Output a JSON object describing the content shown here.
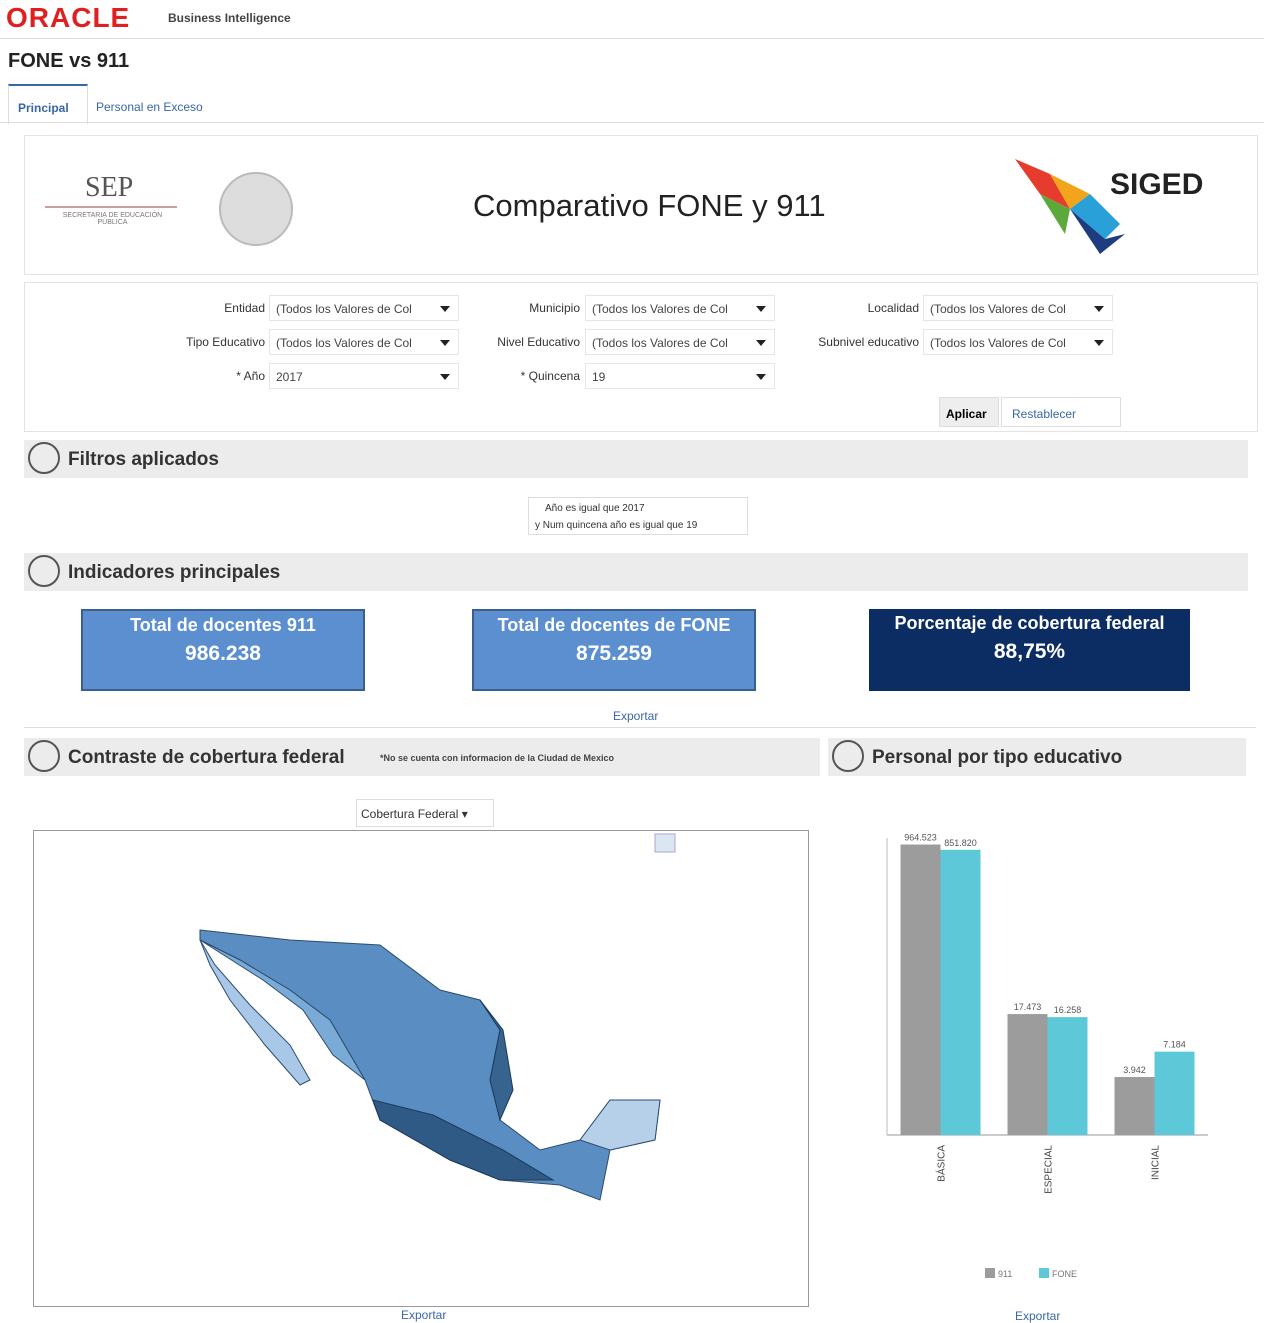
{
  "header": {
    "brand": "ORACLE",
    "product": "Business Intelligence"
  },
  "page_title": "FONE vs 911",
  "tabs": [
    "Principal",
    "Personal en Exceso"
  ],
  "banner": {
    "left_logo": "SEP",
    "left_logo_sub": "SECRETARIA DE EDUCACIÓN PÚBLICA",
    "title": "Comparativo FONE y 911",
    "right_logo": "SIGED"
  },
  "filters": [
    {
      "label": "Entidad",
      "value": "(Todos los Valores de Col"
    },
    {
      "label": "Municipio",
      "value": "(Todos los Valores de Col"
    },
    {
      "label": "Localidad",
      "value": "(Todos los Valores de Col"
    },
    {
      "label": "Tipo Educativo",
      "value": "(Todos los Valores de Col"
    },
    {
      "label": "Nivel Educativo",
      "value": "(Todos los Valores de Col"
    },
    {
      "label": "Subnivel educativo",
      "value": "(Todos los Valores de Col"
    },
    {
      "label": "* Año",
      "value": "2017"
    },
    {
      "label": "* Quincena",
      "value": "19"
    }
  ],
  "buttons": {
    "apply": "Aplicar",
    "reset": "Restablecer"
  },
  "applied": {
    "title": "Filtros aplicados",
    "lines": [
      "Año es igual que 2017",
      "y Num quincena año es igual que 19"
    ]
  },
  "kpis": {
    "title": "Indicadores principales",
    "export": "Exportar",
    "tiles": [
      {
        "label": "Total de docentes 911",
        "value": "986.238"
      },
      {
        "label": "Total de docentes de FONE",
        "value": "875.259"
      },
      {
        "label": "Porcentaje de cobertura federal",
        "value": "88,75%"
      }
    ]
  },
  "map": {
    "title": "Contraste de cobertura federal",
    "note": "*No se cuenta con informacion de la Ciudad de Mexico",
    "dropdown": "Cobertura Federal",
    "export": "Exportar"
  },
  "chart_panel": {
    "title": "Personal por tipo educativo",
    "export": "Exportar"
  },
  "chart_data": {
    "type": "bar",
    "categories": [
      "BÁSICA",
      "ESPECIAL",
      "INICIAL"
    ],
    "ylim": [
      1000,
      1000000
    ],
    "log_scale": true,
    "series": [
      {
        "name": "911",
        "color": "#9c9c9c",
        "values": [
          964523,
          17473,
          3942
        ],
        "value_labels": [
          "964.523",
          "17.473",
          "3.942"
        ]
      },
      {
        "name": "FONE",
        "color": "#5cc8d8",
        "values": [
          851820,
          16258,
          7184
        ],
        "value_labels": [
          "851.820",
          "16.258",
          "7.184"
        ]
      }
    ]
  }
}
